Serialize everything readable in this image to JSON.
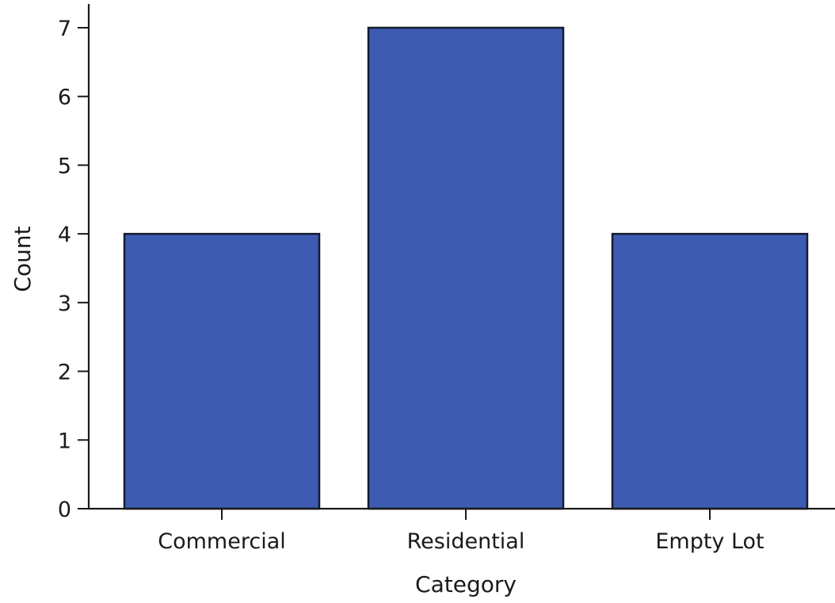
{
  "chart_data": {
    "type": "bar",
    "categories": [
      "Commercial",
      "Residential",
      "Empty Lot"
    ],
    "values": [
      4,
      7,
      4
    ],
    "title": "",
    "xlabel": "Category",
    "ylabel": "Count",
    "ylim": [
      0,
      7
    ],
    "yticks": [
      "0",
      "1",
      "2",
      "3",
      "4",
      "5",
      "6",
      "7"
    ],
    "grid": false,
    "legend": "none",
    "colors": {
      "bar_fill": "#3d5bb0",
      "bar_edge": "#151b30",
      "axis": "#1a1a1a"
    }
  }
}
